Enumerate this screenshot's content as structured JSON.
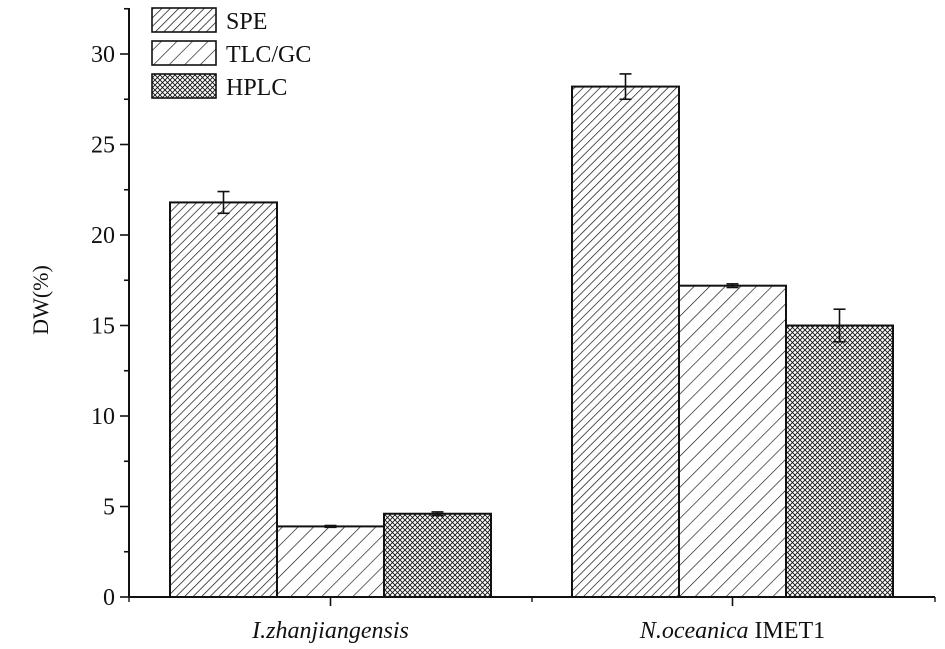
{
  "chart_data": {
    "type": "bar",
    "ylabel": "DW(%)",
    "xlabel": "",
    "ylim": [
      0,
      32
    ],
    "yticks": [
      0,
      5,
      10,
      15,
      20,
      25,
      30
    ],
    "grid": false,
    "legend_position": "top-left",
    "categories": [
      {
        "italic": "I.zhanjiangensis",
        "suffix": ""
      },
      {
        "italic": "N.oceanica",
        "suffix": " IMET1"
      }
    ],
    "series": [
      {
        "name": "SPE",
        "pattern": "dense-diagonal",
        "values": [
          21.8,
          28.2
        ],
        "errors": [
          0.6,
          0.7
        ]
      },
      {
        "name": "TLC/GC",
        "pattern": "sparse-diagonal",
        "values": [
          3.9,
          17.2
        ],
        "errors": [
          0.05,
          0.1
        ]
      },
      {
        "name": "HPLC",
        "pattern": "crosshatch",
        "values": [
          4.6,
          15.0
        ],
        "errors": [
          0.1,
          0.9
        ]
      }
    ],
    "colors": {
      "stroke": "#111111",
      "background": "#ffffff"
    }
  }
}
